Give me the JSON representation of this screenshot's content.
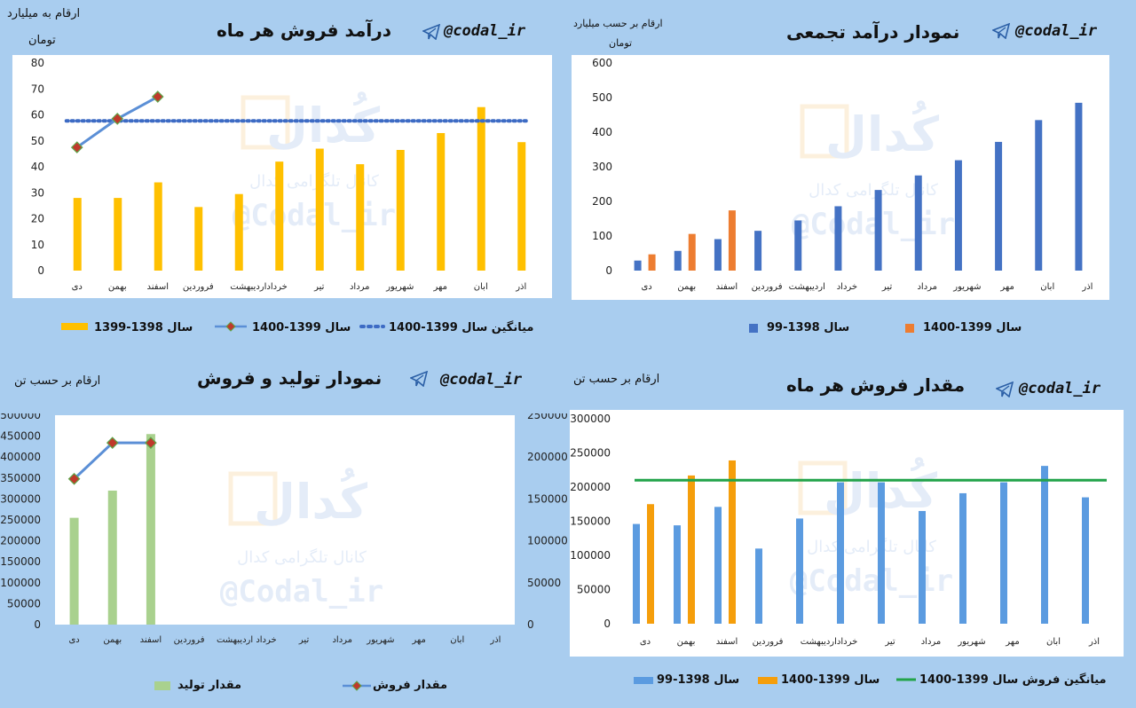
{
  "colors": {
    "background": "#a9cdef",
    "yellow": "#ffc000",
    "blue_bar": "#4472c4",
    "blue_bar_light": "#5b9be0",
    "orange": "#ed7d31",
    "orange_bright": "#f59e0b",
    "line_blue": "#5b8fd6",
    "marker_red": "#c0392b",
    "marker_green": "#5fa54a",
    "dotted_avg": "#3d6bc4",
    "green_line": "#22a34a",
    "green_bar": "#a9d18e"
  },
  "watermark": {
    "text_fa": "کانال تلگرامی کدال",
    "handle": "@Codal_ir",
    "logo_text": "کُدال"
  },
  "panels": [
    {
      "handle": "@codal_ir",
      "title": "درآمد فروش هر ماه",
      "unit_line1": "ارقام به میلیارد",
      "unit_line2": "تومان",
      "legend": [
        "سال 1398-1399",
        "سال 1399-1400",
        "میانگین سال 1399-1400"
      ]
    },
    {
      "handle": "@codal_ir",
      "title": "نمودار درآمد تجمعی",
      "unit_line1": "ارقام بر حسب میلیارد",
      "unit_line2": "تومان",
      "legend": [
        "سال 1398-99",
        "سال 1399-1400"
      ]
    },
    {
      "handle": "@codal_ir",
      "title": "نمودار تولید و فروش",
      "unit_line1": "ارقام بر حسب تن",
      "legend": [
        "مقدار تولید",
        "مقدار فروش"
      ]
    },
    {
      "handle": "@codal_ir",
      "title": "مقدار فروش هر ماه",
      "unit_line1": "ارقام بر حسب تن",
      "legend": [
        "سال 1398-99",
        "سال 1399-1400",
        "میانگین فروش سال 1399-1400"
      ]
    }
  ],
  "chart_data": [
    {
      "type": "bar",
      "title": "درآمد فروش هر ماه",
      "ylabel": "ارقام به میلیارد تومان",
      "categories": [
        "دی",
        "بهمن",
        "اسفند",
        "فروردین",
        "اردیبهشت",
        "خرداد",
        "تیر",
        "مرداد",
        "شهریور",
        "مهر",
        "ابان",
        "اذر"
      ],
      "tick_labels": [
        "دی",
        "بهمن",
        "اسفند",
        "فروردین",
        "خرداداردیبهشت",
        "تیر",
        "مرداد",
        "شهریور",
        "مهر",
        "ابان",
        "اذر"
      ],
      "yticks": [
        0,
        10,
        20,
        30,
        40,
        50,
        60,
        70,
        80
      ],
      "ylim": [
        0,
        80
      ],
      "series": [
        {
          "name": "سال 1398-1399",
          "type": "bar",
          "values": [
            28,
            28,
            34,
            24.5,
            29.5,
            42,
            47,
            41,
            46.5,
            53,
            63,
            49.5
          ]
        },
        {
          "name": "سال 1399-1400",
          "type": "line",
          "values": [
            47.5,
            58.5,
            67,
            null,
            null,
            null,
            null,
            null,
            null,
            null,
            null,
            null
          ]
        },
        {
          "name": "میانگین سال 1399-1400",
          "type": "dotted-line",
          "values": [
            57.7,
            57.7,
            57.7,
            57.7,
            57.7,
            57.7,
            57.7,
            57.7,
            57.7,
            57.7,
            57.7,
            57.7
          ]
        }
      ]
    },
    {
      "type": "bar",
      "title": "نمودار درآمد تجمعی",
      "ylabel": "ارقام بر حسب میلیارد تومان",
      "categories": [
        "دی",
        "بهمن",
        "اسفند",
        "فروردین",
        "اردیبهشت",
        "خرداد",
        "تیر",
        "مرداد",
        "شهریور",
        "مهر",
        "ابان",
        "اذر"
      ],
      "tick_labels": [
        "دی",
        "بهمن",
        "اسفند",
        "فروردین",
        "اردیبهشت",
        "خرداد",
        "تیر",
        "مرداد",
        "شهریور",
        "مهر",
        "ابان",
        "اذر"
      ],
      "yticks": [
        0,
        100,
        200,
        300,
        400,
        500,
        600
      ],
      "ylim": [
        0,
        600
      ],
      "series": [
        {
          "name": "سال 1398-99",
          "values": [
            29,
            57,
            91,
            115,
            145,
            186,
            233,
            275,
            319,
            372,
            435,
            485
          ]
        },
        {
          "name": "سال 1399-1400",
          "values": [
            47,
            106,
            174,
            null,
            null,
            null,
            null,
            null,
            null,
            null,
            null,
            null
          ]
        }
      ]
    },
    {
      "type": "bar",
      "title": "نمودار تولید و فروش",
      "ylabel": "ارقام بر حسب تن",
      "categories": [
        "دی",
        "بهمن",
        "اسفند",
        "فروردین",
        "اردیبهشت",
        "خرداد",
        "تیر",
        "مرداد",
        "شهریور",
        "مهر",
        "ابان",
        "اذر"
      ],
      "tick_labels": [
        "دی",
        "بهمن",
        "اسفند",
        "فروردین",
        "خرداد اردیبهشت",
        "تیر",
        "مرداد",
        "شهریور",
        "مهر",
        "ابان",
        "اذر"
      ],
      "yticks_left": [
        0,
        50000,
        100000,
        150000,
        200000,
        250000,
        300000,
        350000,
        400000,
        450000,
        500000
      ],
      "yticks_right": [
        0,
        50000,
        100000,
        150000,
        200000,
        250000
      ],
      "ylim_left": [
        0,
        500000
      ],
      "ylim_right": [
        0,
        250000
      ],
      "series": [
        {
          "name": "مقدار تولید",
          "type": "bar",
          "axis": "left",
          "values": [
            255000,
            320000,
            455000,
            null,
            null,
            null,
            null,
            null,
            null,
            null,
            null,
            null
          ]
        },
        {
          "name": "مقدار فروش",
          "type": "line",
          "axis": "right",
          "values": [
            174000,
            217000,
            217000,
            null,
            null,
            null,
            null,
            null,
            null,
            null,
            null,
            null
          ]
        }
      ]
    },
    {
      "type": "bar",
      "title": "مقدار فروش هر ماه",
      "ylabel": "ارقام بر حسب تن",
      "categories": [
        "دی",
        "بهمن",
        "اسفند",
        "فروردین",
        "اردیبهشت",
        "خرداد",
        "تیر",
        "مرداد",
        "شهریور",
        "مهر",
        "ابان",
        "اذر"
      ],
      "tick_labels": [
        "دی",
        "بهمن",
        "اسفند",
        "فروردین",
        "خرداداردیبهشت",
        "تیر",
        "مرداد",
        "شهریور",
        "مهر",
        "ابان",
        "اذر"
      ],
      "yticks": [
        0,
        50000,
        100000,
        150000,
        200000,
        250000,
        300000
      ],
      "ylim": [
        0,
        300000
      ],
      "series": [
        {
          "name": "سال 1398-99",
          "type": "bar",
          "values": [
            146000,
            144000,
            171000,
            110000,
            154000,
            207000,
            207000,
            165000,
            191000,
            207000,
            231000,
            185000
          ]
        },
        {
          "name": "سال 1399-1400",
          "type": "bar",
          "values": [
            175000,
            217000,
            239000,
            null,
            null,
            null,
            null,
            null,
            null,
            null,
            null,
            null
          ]
        },
        {
          "name": "میانگین فروش سال 1399-1400",
          "type": "line",
          "values": [
            210000,
            210000,
            210000,
            210000,
            210000,
            210000,
            210000,
            210000,
            210000,
            210000,
            210000,
            210000
          ]
        }
      ]
    }
  ]
}
